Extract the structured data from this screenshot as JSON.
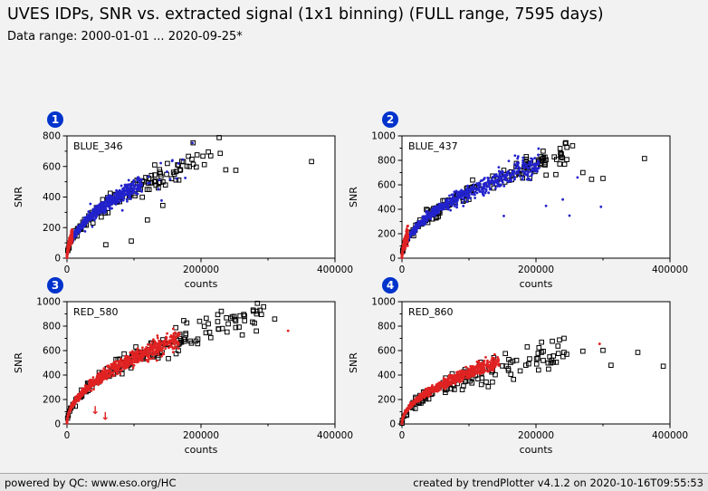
{
  "header": {
    "title": "UVES IDPs, SNR vs. extracted signal (1x1 binning) (FULL range, 7595 days)",
    "subtitle": "Data range: 2000-01-01 ... 2020-09-25*"
  },
  "footer": {
    "left": "powered by QC: www.eso.org/HC",
    "right": "created by trendPlotter v4.1.2 on 2020-10-16T09:55:53"
  },
  "colors": {
    "badge": "#0033cc",
    "blue_points": "#2222cc",
    "red_points": "#e02222",
    "square_outline": "#000000",
    "plot_background": "#ffffff",
    "page_background": "#f2f2f2"
  },
  "chart_data": [
    {
      "type": "scatter",
      "panel": 1,
      "title": "BLUE_346",
      "xlabel": "counts",
      "ylabel": "SNR",
      "xlim": [
        0,
        400000
      ],
      "ylim": [
        0,
        800
      ],
      "xticks": [
        0,
        200000,
        400000
      ],
      "yticks": [
        0,
        200,
        400,
        600,
        800
      ],
      "model": "SNR ~ c*sqrt(counts)",
      "series": [
        {
          "name": "outlier-squares",
          "marker": "square",
          "color": "#000000",
          "n": 120,
          "xmax": 235000,
          "coeff": 1.45,
          "noise": 0.07,
          "seed": 101,
          "xpow": 1.25
        },
        {
          "name": "extra-squares",
          "marker": "square",
          "color": "#000000",
          "points": [
            [
              365000,
              632
            ],
            [
              237000,
              578
            ],
            [
              252000,
              575
            ],
            [
              205000,
              612
            ],
            [
              193000,
              596
            ],
            [
              156000,
              520
            ],
            [
              143000,
              345
            ],
            [
              120000,
              250
            ],
            [
              96000,
              112
            ],
            [
              58000,
              88
            ]
          ]
        },
        {
          "name": "blue-scatter-wide",
          "marker": "dot",
          "color": "#2222cc",
          "n": 40,
          "xmax": 195000,
          "coeff": 1.45,
          "noise": 0.12,
          "seed": 103,
          "xpow": 1.0
        },
        {
          "name": "blue-main",
          "marker": "dot",
          "color": "#2222cc",
          "n": 700,
          "xmax": 112000,
          "coeff": 1.45,
          "noise": 0.05,
          "seed": 102,
          "xpow": 1.5
        },
        {
          "name": "red-low-counts",
          "marker": "dot",
          "color": "#e02222",
          "n": 180,
          "xmax": 8000,
          "coeff": 1.7,
          "noise": 0.15,
          "seed": 104,
          "xpow": 1.3
        }
      ]
    },
    {
      "type": "scatter",
      "panel": 2,
      "title": "BLUE_437",
      "xlabel": "counts",
      "ylabel": "SNR",
      "xlim": [
        0,
        400000
      ],
      "ylim": [
        0,
        1000
      ],
      "xticks": [
        0,
        200000,
        400000
      ],
      "yticks": [
        0,
        200,
        400,
        600,
        800,
        1000
      ],
      "model": "SNR ~ c*sqrt(counts)",
      "series": [
        {
          "name": "outlier-squares",
          "marker": "square",
          "color": "#000000",
          "n": 150,
          "xmax": 255000,
          "coeff": 1.72,
          "noise": 0.06,
          "seed": 201,
          "xpow": 1.25
        },
        {
          "name": "extra-squares",
          "marker": "square",
          "color": "#000000",
          "points": [
            [
              362000,
              815
            ],
            [
              300000,
              652
            ],
            [
              283000,
              645
            ],
            [
              270000,
              700
            ]
          ]
        },
        {
          "name": "blue-isolated",
          "marker": "dot",
          "color": "#2222cc",
          "points": [
            [
              152000,
              345
            ],
            [
              250000,
              348
            ],
            [
              215000,
              428
            ],
            [
              297000,
              420
            ],
            [
              262000,
              660
            ],
            [
              240000,
              480
            ]
          ]
        },
        {
          "name": "blue-main",
          "marker": "dot",
          "color": "#2222cc",
          "n": 750,
          "xmax": 205000,
          "coeff": 1.72,
          "noise": 0.05,
          "seed": 202,
          "xpow": 1.5
        },
        {
          "name": "red-low-counts",
          "marker": "dot",
          "color": "#e02222",
          "n": 200,
          "xmax": 9000,
          "coeff": 2.0,
          "noise": 0.15,
          "seed": 203,
          "xpow": 1.3
        }
      ]
    },
    {
      "type": "scatter",
      "panel": 3,
      "title": "RED_580",
      "xlabel": "counts",
      "ylabel": "SNR",
      "xlim": [
        0,
        400000
      ],
      "ylim": [
        0,
        1000
      ],
      "xticks": [
        0,
        200000,
        400000
      ],
      "yticks": [
        0,
        200,
        400,
        600,
        800,
        1000
      ],
      "model": "SNR ~ c*sqrt(counts)",
      "series": [
        {
          "name": "outlier-squares",
          "marker": "square",
          "color": "#000000",
          "n": 160,
          "xmax": 295000,
          "coeff": 1.7,
          "noise": 0.07,
          "seed": 301,
          "xpow": 1.2
        },
        {
          "name": "extra-squares",
          "marker": "square",
          "color": "#000000",
          "points": [
            [
              288000,
              930
            ],
            [
              310000,
              858
            ],
            [
              265000,
              885
            ],
            [
              238000,
              868
            ]
          ]
        },
        {
          "name": "red-main",
          "marker": "dot",
          "color": "#e02222",
          "n": 900,
          "xmax": 168000,
          "coeff": 1.7,
          "noise": 0.05,
          "seed": 302,
          "xpow": 1.5
        },
        {
          "name": "red-isolated",
          "marker": "dot",
          "color": "#e02222",
          "points": [
            [
              330000,
              762
            ]
          ]
        },
        {
          "name": "red-saturation-arrows",
          "marker": "arrow-down",
          "color": "#e02222",
          "points": [
            [
              42000,
              110
            ],
            [
              57000,
              62
            ]
          ]
        }
      ]
    },
    {
      "type": "scatter",
      "panel": 4,
      "title": "RED_860",
      "xlabel": "counts",
      "ylabel": "SNR",
      "xlim": [
        0,
        400000
      ],
      "ylim": [
        0,
        1000
      ],
      "xticks": [
        0,
        200000,
        400000
      ],
      "yticks": [
        0,
        200,
        400,
        600,
        800,
        1000
      ],
      "model": "SNR ~ c*sqrt(counts)",
      "series": [
        {
          "name": "outlier-squares",
          "marker": "square",
          "color": "#000000",
          "n": 130,
          "xmax": 255000,
          "coeff": 1.18,
          "noise": 0.1,
          "seed": 401,
          "xpow": 1.2
        },
        {
          "name": "extra-squares",
          "marker": "square",
          "color": "#000000",
          "points": [
            [
              390000,
              472
            ],
            [
              352000,
              585
            ],
            [
              300000,
              602
            ],
            [
              312000,
              480
            ],
            [
              270000,
              595
            ]
          ]
        },
        {
          "name": "red-main",
          "marker": "dot",
          "color": "#e02222",
          "n": 800,
          "xmax": 145000,
          "coeff": 1.33,
          "noise": 0.05,
          "seed": 402,
          "xpow": 1.5
        },
        {
          "name": "red-isolated",
          "marker": "dot",
          "color": "#e02222",
          "points": [
            [
              295000,
              655
            ]
          ]
        }
      ]
    }
  ]
}
